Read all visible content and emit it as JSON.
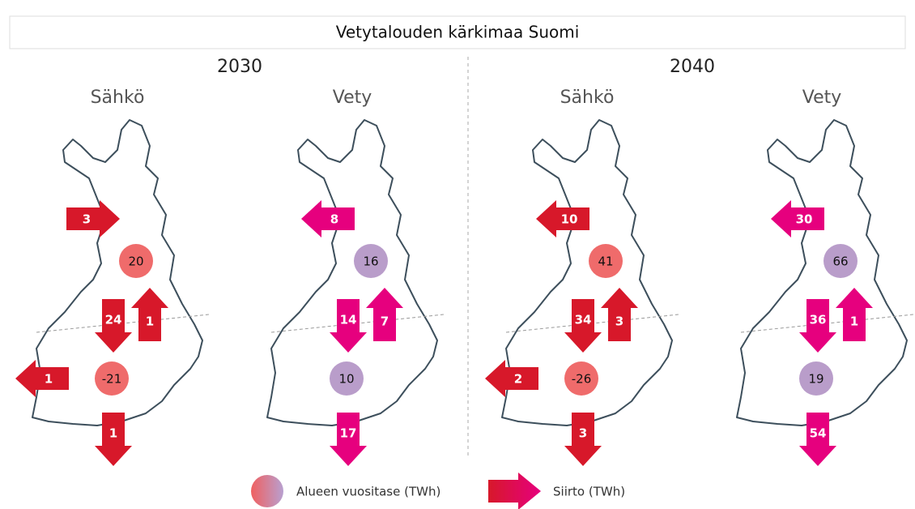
{
  "title": "Vetytalouden kärkimaa Suomi",
  "panels": [
    {
      "year": "2030",
      "maps": [
        {
          "label": "Sähkö",
          "balances": {
            "north": 20,
            "south": -21
          },
          "transfers": {
            "north_west": 3,
            "north_to_south": 24,
            "south_to_north": 1,
            "south_west": 1,
            "south": 1
          }
        },
        {
          "label": "Vety",
          "balances": {
            "north": 16,
            "south": 10
          },
          "transfers": {
            "north_west": 8,
            "north_to_south": 14,
            "south_to_north": 7,
            "south": 17
          }
        }
      ]
    },
    {
      "year": "2040",
      "maps": [
        {
          "label": "Sähkö",
          "balances": {
            "north": 41,
            "south": -26
          },
          "transfers": {
            "north_west": 10,
            "north_to_south": 34,
            "south_to_north": 3,
            "south_west": 2,
            "south": 3
          }
        },
        {
          "label": "Vety",
          "balances": {
            "north": 66,
            "south": 19
          },
          "transfers": {
            "north_west": 30,
            "north_to_south": 36,
            "south_to_north": 1,
            "south": 54
          }
        }
      ]
    }
  ],
  "legend": {
    "balance": "Alueen vuositase (TWh)",
    "transfer": "Siirto (TWh)"
  }
}
